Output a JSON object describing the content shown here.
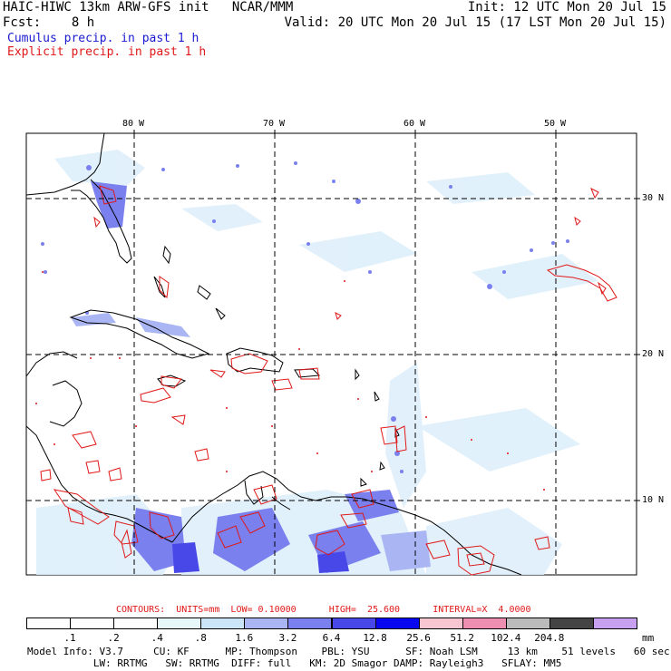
{
  "header": {
    "model_title": "HAIC-HIWC 13km ARW-GFS init   NCAR/MMM",
    "init": "Init: 12 UTC Mon 20 Jul 15",
    "fcst": "Fcst:    8 h",
    "valid": "Valid: 20 UTC Mon 20 Jul 15 (17 LST Mon 20 Jul 15)",
    "cumulus_label": "Cumulus precip. in past 1 h",
    "explicit_label": "Explicit precip. in past 1 h"
  },
  "map": {
    "lon_labels": [
      "80 W",
      "70 W",
      "60 W",
      "50 W"
    ],
    "lat_labels": [
      "30 N",
      "20 N",
      "10 N"
    ]
  },
  "contours_line": "CONTOURS:  UNITS=mm  LOW= 0.10000      HIGH=  25.600      INTERVAL=X  4.0000",
  "colorbar": {
    "levels": [
      ".1",
      ".2",
      ".4",
      ".8",
      "1.6",
      "3.2",
      "6.4",
      "12.8",
      "25.6",
      "51.2",
      "102.4",
      "204.8"
    ],
    "unit": "mm",
    "colors": [
      "#ffffff",
      "#ffffff",
      "#ffffff",
      "#e6f8fa",
      "#cce4f8",
      "#aab6f4",
      "#7a80ee",
      "#4848e8",
      "#0808f0",
      "#f8c6d0",
      "#ee8eb0",
      "#bbbbbb",
      "#444444",
      "#c8a0f0"
    ]
  },
  "footer": {
    "line1": "Model Info: V3.7     CU: KF      MP: Thompson    PBL: YSU      SF: Noah LSM     13 km    51 levels   60 sec",
    "line2": "           LW: RRTMG   SW: RRTMG  DIFF: full   KM: 2D Smagor DAMP: Rayleigh3   SFLAY: MM5"
  },
  "style": {
    "cumulus_color": "#1a1ad0",
    "explicit_color": "#e01818",
    "coast_color": "#000000"
  }
}
